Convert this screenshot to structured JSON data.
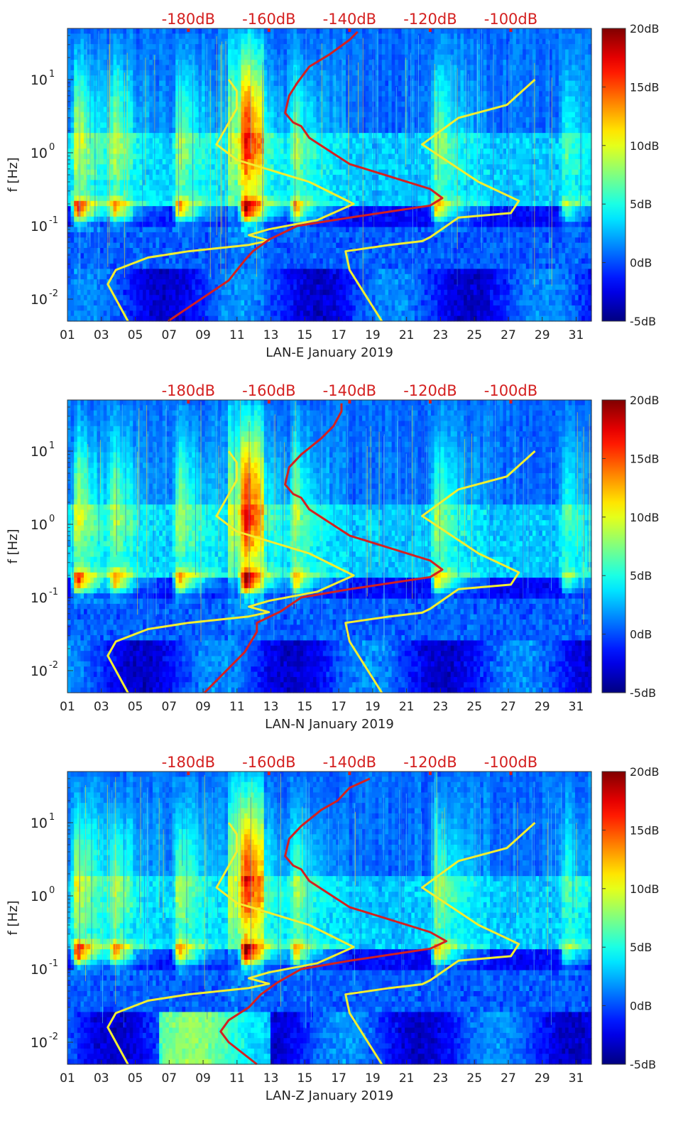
{
  "colors": {
    "background": "#ffffff",
    "red_curve": "#d42020",
    "yellow_curve": "#f3ee30",
    "top_axis_text": "#d42020",
    "axis_text": "#222222"
  },
  "chart_data": [
    {
      "type": "heatmap",
      "xlabel": "LAN-E January 2019",
      "ylabel": "f [Hz]",
      "x_range": [
        1,
        31.9
      ],
      "x_ticks": [
        "01",
        "03",
        "05",
        "07",
        "09",
        "11",
        "13",
        "15",
        "17",
        "19",
        "21",
        "23",
        "25",
        "27",
        "29",
        "31"
      ],
      "y_scale": "log",
      "y_range": [
        0.005,
        50
      ],
      "y_ticks": [
        {
          "value": 0.01,
          "base": "10",
          "exp": "-2"
        },
        {
          "value": 0.1,
          "base": "10",
          "exp": "-1"
        },
        {
          "value": 1,
          "base": "10",
          "exp": "0"
        },
        {
          "value": 10,
          "base": "10",
          "exp": "1"
        }
      ],
      "top_axis_ticks": [
        "-180dB",
        "-160dB",
        "-140dB",
        "-120dB",
        "-100dB"
      ],
      "colorbar": {
        "range": [
          -5,
          20
        ],
        "ticks": [
          "20dB",
          "15dB",
          "10dB",
          "5dB",
          "0dB",
          "-5dB"
        ]
      },
      "events": [
        {
          "day": 1.6,
          "strength": 0.95
        },
        {
          "day": 3.8,
          "strength": 0.55
        },
        {
          "day": 7.6,
          "strength": 0.75
        },
        {
          "day": 11.5,
          "strength": 1.0
        },
        {
          "day": 14.5,
          "strength": 0.6
        },
        {
          "day": 22.8,
          "strength": 0.7
        },
        {
          "day": 30.4,
          "strength": 0.45
        }
      ],
      "red_curve": [
        [
          -185,
          0.005
        ],
        [
          -170,
          0.018
        ],
        [
          -166,
          0.034
        ],
        [
          -164,
          0.045
        ],
        [
          -160,
          0.065
        ],
        [
          -153,
          0.1
        ],
        [
          -140,
          0.13
        ],
        [
          -120,
          0.19
        ],
        [
          -117,
          0.24
        ],
        [
          -120,
          0.32
        ],
        [
          -140,
          0.7
        ],
        [
          -150,
          1.6
        ],
        [
          -152,
          2.3
        ],
        [
          -154,
          2.6
        ],
        [
          -156,
          3.5
        ],
        [
          -155,
          6
        ],
        [
          -153,
          9
        ],
        [
          -150,
          15
        ],
        [
          -145,
          22
        ],
        [
          -140,
          35
        ],
        [
          -138,
          45
        ]
      ],
      "yellow_left": [
        [
          -195,
          0.005
        ],
        [
          -200,
          0.016
        ],
        [
          -198,
          0.025
        ],
        [
          -190,
          0.037
        ],
        [
          -180,
          0.045
        ],
        [
          -165,
          0.055
        ],
        [
          -160,
          0.063
        ],
        [
          -165,
          0.075
        ],
        [
          -160,
          0.09
        ],
        [
          -148,
          0.12
        ],
        [
          -139,
          0.2
        ],
        [
          -150,
          0.4
        ],
        [
          -168,
          0.8
        ],
        [
          -173,
          1.3
        ],
        [
          -168,
          4
        ],
        [
          -168,
          7
        ],
        [
          -170,
          10
        ]
      ],
      "yellow_right": [
        [
          -132,
          0.005
        ],
        [
          -140,
          0.025
        ],
        [
          -141,
          0.045
        ],
        [
          -130,
          0.055
        ],
        [
          -122,
          0.062
        ],
        [
          -120,
          0.07
        ],
        [
          -113,
          0.13
        ],
        [
          -100,
          0.15
        ],
        [
          -98,
          0.22
        ],
        [
          -108,
          0.4
        ],
        [
          -122,
          1.3
        ],
        [
          -113,
          3
        ],
        [
          -101,
          4.5
        ],
        [
          -94,
          10
        ]
      ]
    },
    {
      "type": "heatmap",
      "xlabel": "LAN-N January 2019",
      "ylabel": "f [Hz]",
      "x_range": [
        1,
        31.9
      ],
      "x_ticks": [
        "01",
        "03",
        "05",
        "07",
        "09",
        "11",
        "13",
        "15",
        "17",
        "19",
        "21",
        "23",
        "25",
        "27",
        "29",
        "31"
      ],
      "y_scale": "log",
      "y_range": [
        0.005,
        50
      ],
      "y_ticks": [
        {
          "value": 0.01,
          "base": "10",
          "exp": "-2"
        },
        {
          "value": 0.1,
          "base": "10",
          "exp": "-1"
        },
        {
          "value": 1,
          "base": "10",
          "exp": "0"
        },
        {
          "value": 10,
          "base": "10",
          "exp": "1"
        }
      ],
      "top_axis_ticks": [
        "-180dB",
        "-160dB",
        "-140dB",
        "-120dB",
        "-100dB"
      ],
      "colorbar": {
        "range": [
          -5,
          20
        ],
        "ticks": [
          "20dB",
          "15dB",
          "10dB",
          "5dB",
          "0dB",
          "-5dB"
        ]
      },
      "events": [
        {
          "day": 1.6,
          "strength": 0.9
        },
        {
          "day": 3.8,
          "strength": 0.55
        },
        {
          "day": 7.6,
          "strength": 0.75
        },
        {
          "day": 11.5,
          "strength": 1.0
        },
        {
          "day": 14.5,
          "strength": 0.6
        },
        {
          "day": 22.8,
          "strength": 0.7
        },
        {
          "day": 30.4,
          "strength": 0.45
        }
      ],
      "red_curve": [
        [
          -176,
          0.005
        ],
        [
          -166,
          0.018
        ],
        [
          -163,
          0.034
        ],
        [
          -163,
          0.045
        ],
        [
          -157,
          0.065
        ],
        [
          -152,
          0.1
        ],
        [
          -140,
          0.13
        ],
        [
          -120,
          0.19
        ],
        [
          -117,
          0.24
        ],
        [
          -120,
          0.32
        ],
        [
          -140,
          0.7
        ],
        [
          -150,
          1.6
        ],
        [
          -152,
          2.3
        ],
        [
          -154,
          2.6
        ],
        [
          -156,
          3.5
        ],
        [
          -155,
          6
        ],
        [
          -152,
          9
        ],
        [
          -147,
          15
        ],
        [
          -144,
          22
        ],
        [
          -142,
          35
        ],
        [
          -142,
          45
        ]
      ],
      "yellow_left": [
        [
          -195,
          0.005
        ],
        [
          -200,
          0.016
        ],
        [
          -198,
          0.025
        ],
        [
          -190,
          0.037
        ],
        [
          -180,
          0.045
        ],
        [
          -165,
          0.055
        ],
        [
          -160,
          0.063
        ],
        [
          -165,
          0.075
        ],
        [
          -160,
          0.09
        ],
        [
          -148,
          0.12
        ],
        [
          -139,
          0.2
        ],
        [
          -150,
          0.4
        ],
        [
          -168,
          0.8
        ],
        [
          -173,
          1.3
        ],
        [
          -168,
          4
        ],
        [
          -168,
          7
        ],
        [
          -170,
          10
        ]
      ],
      "yellow_right": [
        [
          -132,
          0.005
        ],
        [
          -140,
          0.025
        ],
        [
          -141,
          0.045
        ],
        [
          -130,
          0.055
        ],
        [
          -122,
          0.062
        ],
        [
          -120,
          0.07
        ],
        [
          -113,
          0.13
        ],
        [
          -100,
          0.15
        ],
        [
          -98,
          0.22
        ],
        [
          -108,
          0.4
        ],
        [
          -122,
          1.3
        ],
        [
          -113,
          3
        ],
        [
          -101,
          4.5
        ],
        [
          -94,
          10
        ]
      ]
    },
    {
      "type": "heatmap",
      "xlabel": "LAN-Z January 2019",
      "ylabel": "f [Hz]",
      "x_range": [
        1,
        31.9
      ],
      "x_ticks": [
        "01",
        "03",
        "05",
        "07",
        "09",
        "11",
        "13",
        "15",
        "17",
        "19",
        "21",
        "23",
        "25",
        "27",
        "29",
        "31"
      ],
      "y_scale": "log",
      "y_range": [
        0.005,
        50
      ],
      "y_ticks": [
        {
          "value": 0.01,
          "base": "10",
          "exp": "-2"
        },
        {
          "value": 0.1,
          "base": "10",
          "exp": "-1"
        },
        {
          "value": 1,
          "base": "10",
          "exp": "0"
        },
        {
          "value": 10,
          "base": "10",
          "exp": "1"
        }
      ],
      "top_axis_ticks": [
        "-180dB",
        "-160dB",
        "-140dB",
        "-120dB",
        "-100dB"
      ],
      "colorbar": {
        "range": [
          -5,
          20
        ],
        "ticks": [
          "20dB",
          "15dB",
          "10dB",
          "5dB",
          "0dB",
          "-5dB"
        ]
      },
      "events": [
        {
          "day": 1.6,
          "strength": 0.95
        },
        {
          "day": 3.8,
          "strength": 0.55
        },
        {
          "day": 7.6,
          "strength": 0.75
        },
        {
          "day": 11.5,
          "strength": 1.0
        },
        {
          "day": 14.5,
          "strength": 0.6
        },
        {
          "day": 22.8,
          "strength": 0.7
        },
        {
          "day": 30.4,
          "strength": 0.45
        }
      ],
      "red_curve": [
        [
          -163,
          0.005
        ],
        [
          -170,
          0.01
        ],
        [
          -172,
          0.014
        ],
        [
          -170,
          0.02
        ],
        [
          -165,
          0.03
        ],
        [
          -162,
          0.045
        ],
        [
          -158,
          0.065
        ],
        [
          -152,
          0.1
        ],
        [
          -140,
          0.13
        ],
        [
          -120,
          0.19
        ],
        [
          -116,
          0.24
        ],
        [
          -120,
          0.32
        ],
        [
          -140,
          0.7
        ],
        [
          -150,
          1.6
        ],
        [
          -152,
          2.3
        ],
        [
          -154,
          2.6
        ],
        [
          -156,
          3.5
        ],
        [
          -155,
          6
        ],
        [
          -152,
          9
        ],
        [
          -147,
          15
        ],
        [
          -143,
          20
        ],
        [
          -140,
          30
        ],
        [
          -135,
          40
        ]
      ],
      "yellow_left": [
        [
          -195,
          0.005
        ],
        [
          -200,
          0.016
        ],
        [
          -198,
          0.025
        ],
        [
          -190,
          0.037
        ],
        [
          -180,
          0.045
        ],
        [
          -165,
          0.055
        ],
        [
          -160,
          0.063
        ],
        [
          -165,
          0.075
        ],
        [
          -160,
          0.09
        ],
        [
          -148,
          0.12
        ],
        [
          -139,
          0.2
        ],
        [
          -150,
          0.4
        ],
        [
          -168,
          0.8
        ],
        [
          -173,
          1.3
        ],
        [
          -168,
          4
        ],
        [
          -168,
          7
        ],
        [
          -170,
          10
        ]
      ],
      "yellow_right": [
        [
          -132,
          0.005
        ],
        [
          -140,
          0.025
        ],
        [
          -141,
          0.045
        ],
        [
          -130,
          0.055
        ],
        [
          -122,
          0.062
        ],
        [
          -120,
          0.07
        ],
        [
          -113,
          0.13
        ],
        [
          -100,
          0.15
        ],
        [
          -98,
          0.22
        ],
        [
          -108,
          0.4
        ],
        [
          -122,
          1.3
        ],
        [
          -113,
          3
        ],
        [
          -101,
          4.5
        ],
        [
          -94,
          10
        ]
      ]
    }
  ]
}
